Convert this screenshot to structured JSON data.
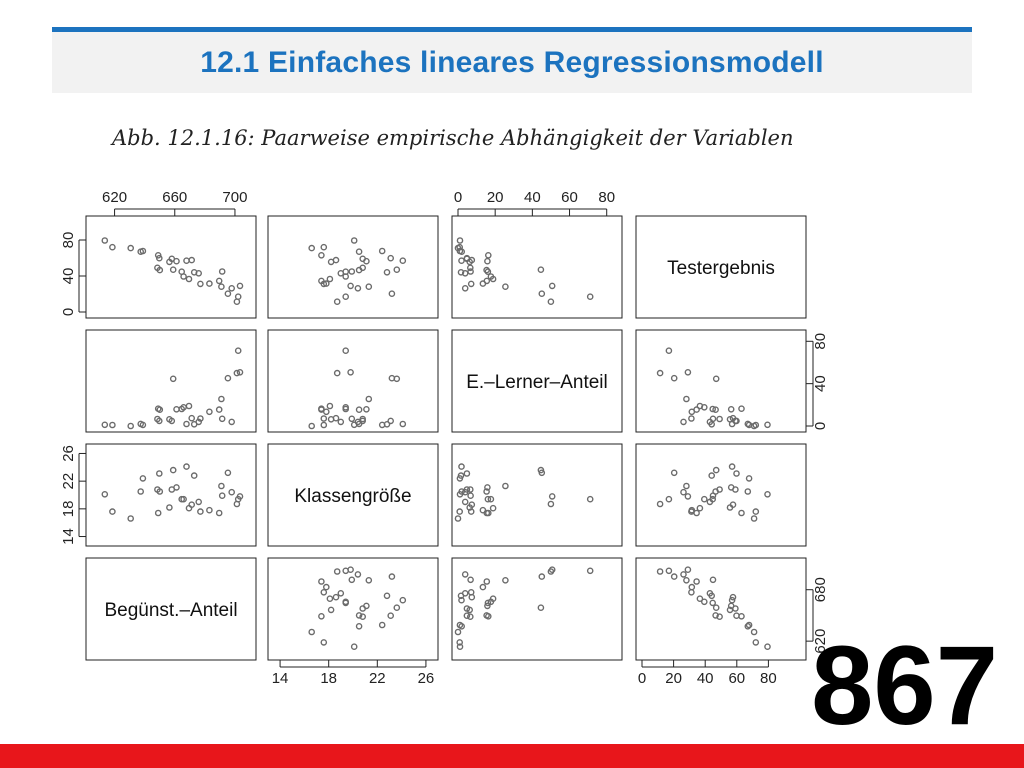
{
  "header": {
    "title": "12.1 Einfaches lineares Regressionsmodell"
  },
  "figure": {
    "caption": "Abb. 12.1.16: Paarweise empirische Abhängigkeit der Variablen"
  },
  "slide_number": "867",
  "colors": {
    "accent_blue": "#1c73bf",
    "footer_red": "#e8161b",
    "point_color": "#6b6b6b"
  },
  "chart_data": {
    "type": "scatter",
    "variables": [
      {
        "label": "Begünst.–Anteil",
        "range": [
          0,
          100
        ],
        "ticks": [
          "0",
          "40",
          "80"
        ]
      },
      {
        "label": "E.–Lerner–Anteil",
        "range": [
          0,
          85
        ],
        "ticks": [
          "0",
          "40",
          "80"
        ]
      },
      {
        "label": "Klassengröße",
        "range": [
          13.5,
          26.5
        ],
        "ticks": [
          "14",
          "18",
          "22",
          "26"
        ]
      },
      {
        "label": "Testergebnis",
        "range": [
          605,
          710
        ],
        "ticks": [
          "620",
          "660",
          "700"
        ]
      }
    ],
    "diagonal_order": [
      3,
      1,
      2,
      0
    ],
    "outer_ticks": {
      "top": [
        {
          "column": 0,
          "variable": 3,
          "labels": [
            "620",
            "660",
            "700"
          ]
        },
        {
          "column": 2,
          "variable": 1,
          "labels": [
            "0",
            "20",
            "40",
            "60",
            "80"
          ]
        }
      ],
      "bottom": [
        {
          "column": 1,
          "variable": 2,
          "labels": [
            "14",
            "18",
            "22",
            "26"
          ]
        },
        {
          "column": 3,
          "variable": 0,
          "labels": [
            "0",
            "20",
            "40",
            "60",
            "80"
          ]
        }
      ],
      "left": [
        {
          "row": 0,
          "variable": 0,
          "labels": [
            "0",
            "40",
            "80"
          ]
        },
        {
          "row": 2,
          "variable": 2,
          "labels": [
            "14",
            "18",
            "22",
            "26"
          ]
        }
      ],
      "right": [
        {
          "row": 1,
          "variable": 1,
          "labels": [
            "0",
            "40",
            "80"
          ]
        },
        {
          "row": 3,
          "variable": 3,
          "labels": [
            "620",
            "680"
          ]
        }
      ]
    },
    "observations": [
      [
        82.4,
        6.8,
        19.9,
        652.2
      ],
      [
        88.4,
        3.9,
        20.4,
        632.6
      ],
      [
        51.4,
        44.6,
        23.6,
        654.3
      ],
      [
        92.5,
        71.1,
        19.4,
        622.9
      ],
      [
        59.8,
        1.9,
        24.1,
        664.9
      ],
      [
        42.9,
        15.4,
        20.5,
        653.9
      ],
      [
        64.7,
        1.6,
        22.8,
        651.3
      ],
      [
        41.9,
        16.3,
        17.4,
        671.1
      ],
      [
        32.2,
        1.0,
        22.4,
        676.2
      ],
      [
        49.0,
        6.3,
        18.2,
        663.5
      ],
      [
        67.5,
        3.9,
        19.0,
        650.1
      ],
      [
        12.9,
        0.9,
        17.6,
        680.6
      ],
      [
        8.1,
        1.1,
        20.1,
        688.4
      ],
      [
        50.5,
        4.8,
        20.8,
        667.1
      ],
      [
        86.0,
        45.1,
        23.2,
        626.4
      ],
      [
        63.1,
        7.4,
        18.6,
        665.5
      ],
      [
        53.5,
        15.8,
        21.1,
        664.3
      ],
      [
        74.3,
        13.4,
        17.8,
        638.1
      ],
      [
        41.4,
        6.6,
        20.8,
        656.6
      ],
      [
        30.8,
        2.0,
        20.5,
        675.3
      ],
      [
        91.7,
        50.0,
        18.7,
        617.0
      ],
      [
        80.5,
        15.5,
        17.4,
        641.3
      ],
      [
        68.6,
        7.1,
        17.6,
        637.8
      ],
      [
        81.9,
        25.5,
        21.3,
        634.5
      ],
      [
        61.4,
        18.9,
        18.1,
        643.5
      ],
      [
        42.6,
        4.8,
        23.1,
        667.8
      ],
      [
        56.8,
        16.1,
        19.4,
        652.0
      ],
      [
        24.5,
        0.0,
        16.6,
        679.5
      ],
      [
        93.7,
        50.7,
        19.8,
        635.5
      ],
      [
        58.0,
        17.7,
        19.4,
        646.4
      ]
    ]
  }
}
